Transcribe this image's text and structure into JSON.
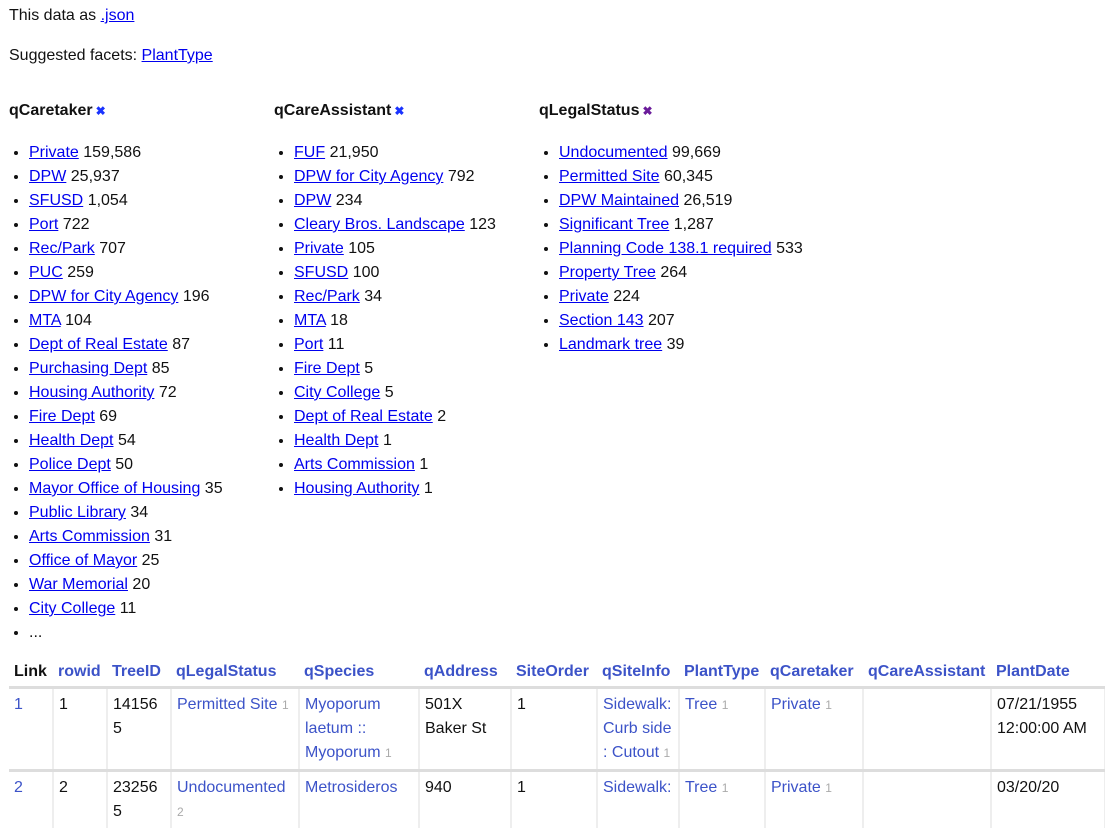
{
  "header": {
    "data_as": "This data as",
    "json_link": ".json",
    "suggested_label": "Suggested facets:",
    "suggested": [
      "PlantType"
    ]
  },
  "facets": [
    {
      "title": "qCaretaker",
      "remove_icon": "close-icon",
      "items": [
        {
          "label": "Private",
          "count": "159,586"
        },
        {
          "label": "DPW",
          "count": "25,937"
        },
        {
          "label": "SFUSD",
          "count": "1,054"
        },
        {
          "label": "Port",
          "count": "722"
        },
        {
          "label": "Rec/Park",
          "count": "707"
        },
        {
          "label": "PUC",
          "count": "259"
        },
        {
          "label": "DPW for City Agency",
          "count": "196"
        },
        {
          "label": "MTA",
          "count": "104"
        },
        {
          "label": "Dept of Real Estate",
          "count": "87"
        },
        {
          "label": "Purchasing Dept",
          "count": "85"
        },
        {
          "label": "Housing Authority",
          "count": "72"
        },
        {
          "label": "Fire Dept",
          "count": "69"
        },
        {
          "label": "Health Dept",
          "count": "54"
        },
        {
          "label": "Police Dept",
          "count": "50"
        },
        {
          "label": "Mayor Office of Housing",
          "count": "35"
        },
        {
          "label": "Public Library",
          "count": "34"
        },
        {
          "label": "Arts Commission",
          "count": "31"
        },
        {
          "label": "Office of Mayor",
          "count": "25"
        },
        {
          "label": "War Memorial",
          "count": "20"
        },
        {
          "label": "City College",
          "count": "11"
        }
      ],
      "more": "..."
    },
    {
      "title": "qCareAssistant",
      "remove_icon": "close-icon",
      "items": [
        {
          "label": "FUF",
          "count": "21,950"
        },
        {
          "label": "DPW for City Agency",
          "count": "792"
        },
        {
          "label": "DPW",
          "count": "234"
        },
        {
          "label": "Cleary Bros. Landscape",
          "count": "123"
        },
        {
          "label": "Private",
          "count": "105"
        },
        {
          "label": "SFUSD",
          "count": "100"
        },
        {
          "label": "Rec/Park",
          "count": "34"
        },
        {
          "label": "MTA",
          "count": "18"
        },
        {
          "label": "Port",
          "count": "11"
        },
        {
          "label": "Fire Dept",
          "count": "5"
        },
        {
          "label": "City College",
          "count": "5"
        },
        {
          "label": "Dept of Real Estate",
          "count": "2"
        },
        {
          "label": "Health Dept",
          "count": "1"
        },
        {
          "label": "Arts Commission",
          "count": "1"
        },
        {
          "label": "Housing Authority",
          "count": "1"
        }
      ]
    },
    {
      "title": "qLegalStatus",
      "remove_icon": "close-icon",
      "items": [
        {
          "label": "Undocumented",
          "count": "99,669"
        },
        {
          "label": "Permitted Site",
          "count": "60,345"
        },
        {
          "label": "DPW Maintained",
          "count": "26,519"
        },
        {
          "label": "Significant Tree",
          "count": "1,287"
        },
        {
          "label": "Planning Code 138.1 required",
          "count": "533"
        },
        {
          "label": "Property Tree",
          "count": "264"
        },
        {
          "label": "Private",
          "count": "224"
        },
        {
          "label": "Section 143",
          "count": "207"
        },
        {
          "label": "Landmark tree",
          "count": "39"
        }
      ]
    }
  ],
  "table": {
    "columns": [
      "Link",
      "rowid",
      "TreeID",
      "qLegalStatus",
      "qSpecies",
      "qAddress",
      "SiteOrder",
      "qSiteInfo",
      "PlantType",
      "qCaretaker",
      "qCareAssistant",
      "PlantDate"
    ],
    "rows": [
      {
        "link": "1",
        "rowid": "1",
        "treeid": "141565",
        "legal": "Permitted Site",
        "legal_n": "1",
        "species": "Myoporum laetum :: Myoporum",
        "species_n": "1",
        "address": "501X Baker St",
        "siteorder": "1",
        "siteinfo": "Sidewalk: Curb side : Cutout",
        "siteinfo_n": "1",
        "planttype": "Tree",
        "planttype_n": "1",
        "caretaker": "Private",
        "caretaker_n": "1",
        "careassistant": "",
        "plantdate": "07/21/1955 12:00:00 AM"
      },
      {
        "link": "2",
        "rowid": "2",
        "treeid": "232565",
        "legal": "Undocumented",
        "legal_n": "2",
        "species": "Metrosideros",
        "species_n": "",
        "address": "940",
        "siteorder": "1",
        "siteinfo": "Sidewalk:",
        "siteinfo_n": "",
        "planttype": "Tree",
        "planttype_n": "1",
        "caretaker": "Private",
        "caretaker_n": "1",
        "careassistant": "",
        "plantdate": "03/20/20"
      }
    ]
  }
}
